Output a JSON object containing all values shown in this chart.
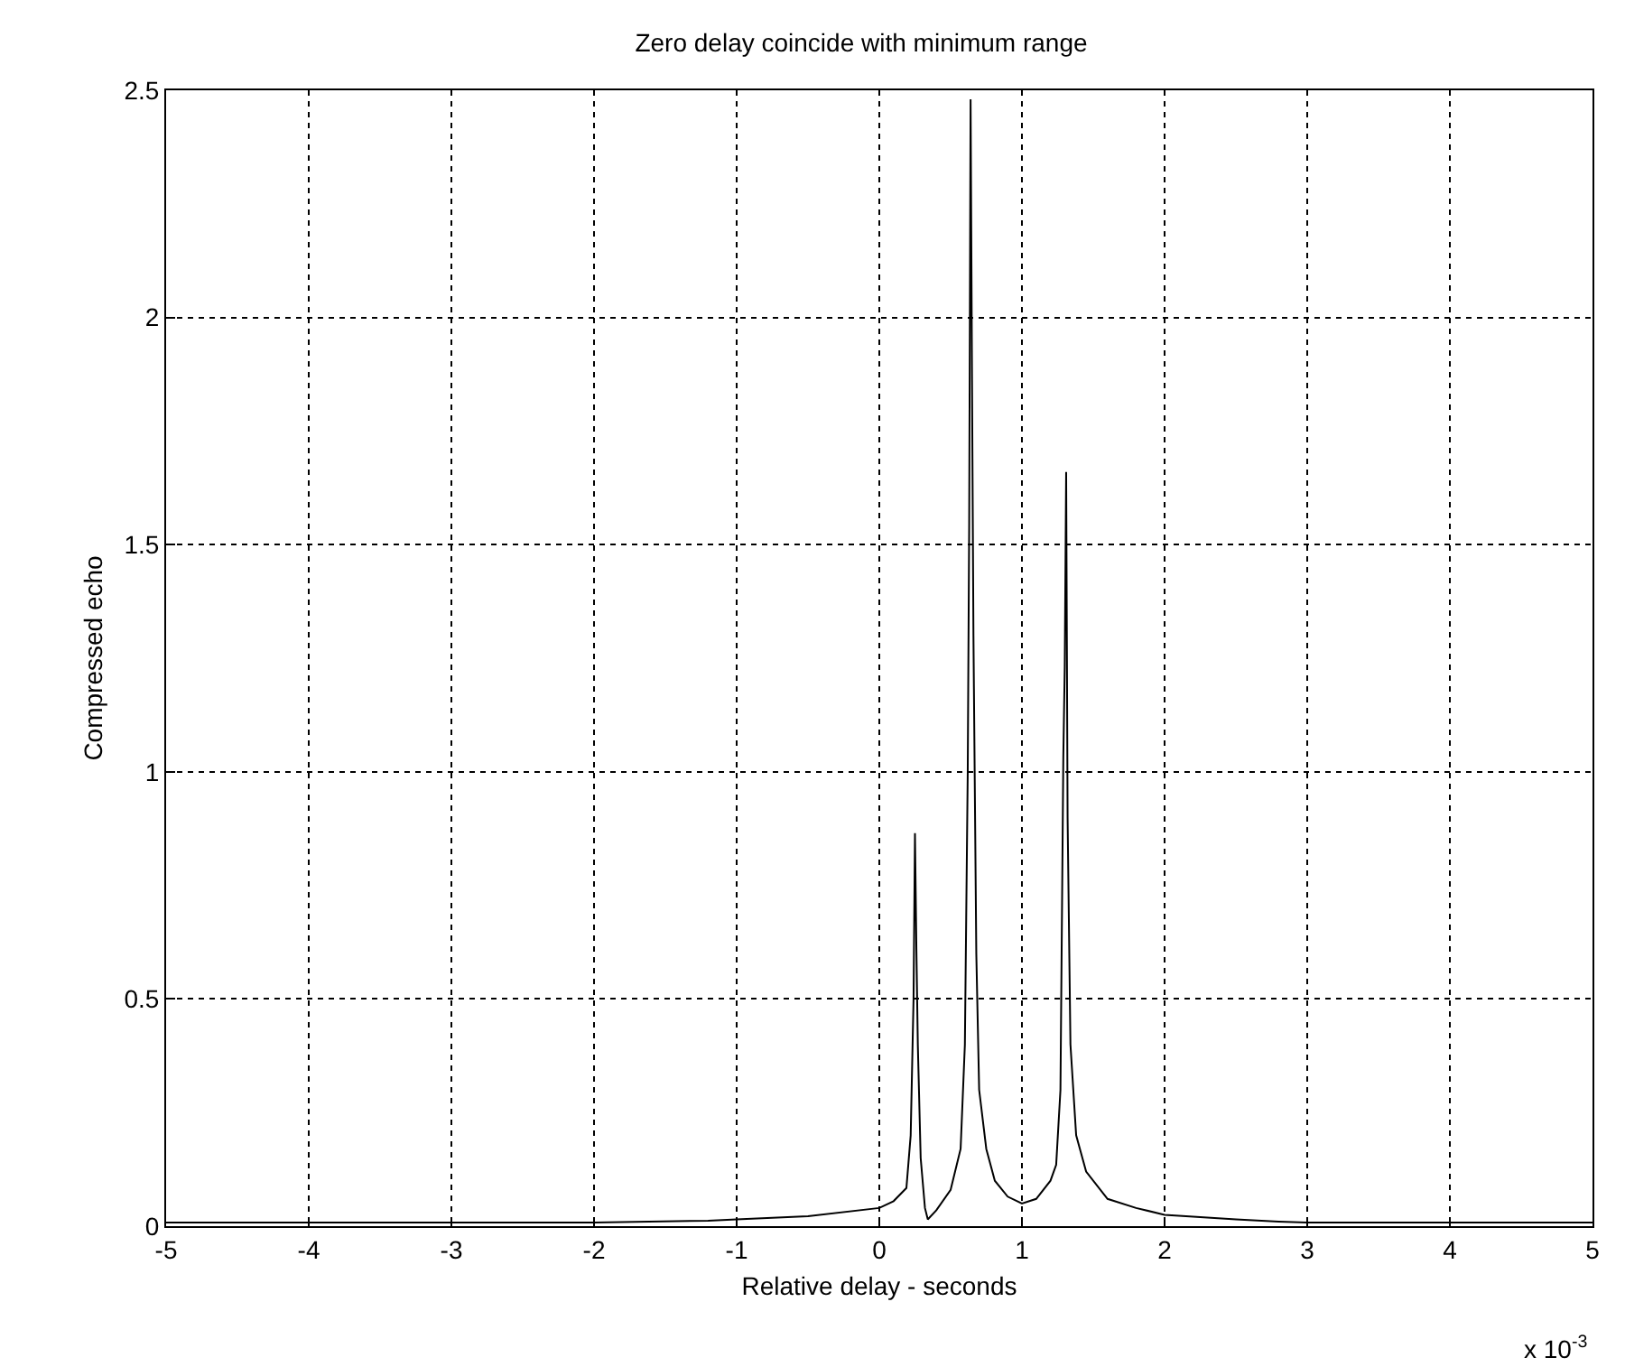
{
  "chart_data": {
    "type": "line",
    "title": "Zero delay coincide with minimum range",
    "xlabel": "Relative delay - seconds",
    "ylabel": "Compressed echo",
    "annotations": [
      "x 10$^{-3}$"
    ],
    "x": [
      -5,
      -2,
      -1.2,
      -1,
      -0.5,
      0,
      0.1,
      0.19,
      0.22,
      0.24,
      0.25,
      0.26,
      0.27,
      0.29,
      0.32,
      0.34,
      0.4,
      0.5,
      0.57,
      0.6,
      0.62,
      0.63,
      0.64,
      0.65,
      0.66,
      0.68,
      0.7,
      0.75,
      0.81,
      0.9,
      1,
      1.1,
      1.2,
      1.24,
      1.27,
      1.29,
      1.3,
      1.31,
      1.32,
      1.34,
      1.38,
      1.45,
      1.6,
      1.8,
      2,
      2.5,
      2.8,
      3,
      5
    ],
    "series": [
      {
        "color": "#000000",
        "values": [
          0.008,
          0.008,
          0.012,
          0.015,
          0.022,
          0.04,
          0.055,
          0.084,
          0.2,
          0.5,
          0.865,
          0.61,
          0.4,
          0.15,
          0.04,
          0.015,
          0.035,
          0.08,
          0.17,
          0.4,
          1.0,
          1.54,
          2.48,
          1.86,
          1.3,
          0.6,
          0.3,
          0.17,
          0.1,
          0.065,
          0.05,
          0.06,
          0.1,
          0.135,
          0.3,
          1.03,
          1.23,
          1.66,
          0.9,
          0.4,
          0.2,
          0.12,
          0.06,
          0.04,
          0.025,
          0.015,
          0.01,
          0.008,
          0.008
        ]
      }
    ],
    "xlim": [
      -5,
      5
    ],
    "xticks": [
      -5,
      -4,
      -3,
      -2,
      -1,
      0,
      1,
      2,
      3,
      4,
      5
    ],
    "ylim": [
      0,
      2.5
    ],
    "yticks": [
      0,
      0.5,
      1,
      1.5,
      2,
      2.5
    ],
    "grid": true,
    "line_style": "solid",
    "marker": "none"
  }
}
